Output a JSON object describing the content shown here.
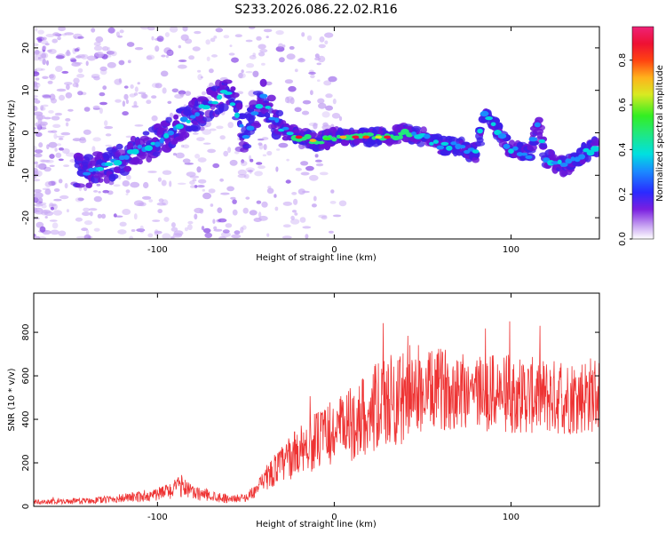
{
  "title": "S233.2026.086.22.02.R16",
  "chart_data": [
    {
      "type": "heatmap",
      "name": "spectrogram",
      "xlabel": "Height of straight line (km)",
      "ylabel": "Frequency (Hz)",
      "xlim": [
        -170,
        150
      ],
      "ylim": [
        -25,
        25
      ],
      "xticks": [
        -100,
        0,
        100
      ],
      "yticks": [
        -20,
        -10,
        0,
        10,
        20
      ],
      "trace": [
        [
          -140,
          -9
        ],
        [
          -130,
          -8
        ],
        [
          -120,
          -6
        ],
        [
          -110,
          -4
        ],
        [
          -100,
          -2
        ],
        [
          -90,
          1
        ],
        [
          -80,
          4
        ],
        [
          -70,
          7
        ],
        [
          -60,
          10
        ],
        [
          -50,
          -1
        ],
        [
          -40,
          9
        ],
        [
          -35,
          4
        ],
        [
          -30,
          1
        ],
        [
          -20,
          -1
        ],
        [
          -10,
          -2
        ],
        [
          0,
          -1
        ],
        [
          10,
          -1
        ],
        [
          20,
          -1
        ],
        [
          30,
          -1
        ],
        [
          40,
          0
        ],
        [
          50,
          -1
        ],
        [
          60,
          -3
        ],
        [
          70,
          -3
        ],
        [
          80,
          -5
        ],
        [
          85,
          5
        ],
        [
          90,
          2
        ],
        [
          100,
          -4
        ],
        [
          110,
          -5
        ],
        [
          115,
          2
        ],
        [
          120,
          -6
        ],
        [
          130,
          -8
        ],
        [
          140,
          -5
        ],
        [
          150,
          -3
        ]
      ],
      "colorbar": {
        "label": "Normalized spectral amplitude",
        "ticks": [
          0.0,
          0.2,
          0.4,
          0.6,
          0.8
        ],
        "tick_labels": [
          "0.0",
          "0.2",
          "0.4",
          "0.6",
          "0.8"
        ],
        "range": [
          0,
          0.95
        ]
      }
    },
    {
      "type": "line",
      "name": "snr",
      "xlabel": "Height of straight line (km)",
      "ylabel": "SNR (10 * v/v)",
      "xlim": [
        -170,
        150
      ],
      "ylim": [
        0,
        980
      ],
      "xticks": [
        -100,
        0,
        100
      ],
      "yticks": [
        0,
        200,
        400,
        600,
        800
      ],
      "color": "#ee3333",
      "envelope": [
        [
          -170,
          20
        ],
        [
          -150,
          22
        ],
        [
          -130,
          30
        ],
        [
          -110,
          45
        ],
        [
          -100,
          55
        ],
        [
          -90,
          80
        ],
        [
          -85,
          100
        ],
        [
          -80,
          60
        ],
        [
          -70,
          50
        ],
        [
          -60,
          35
        ],
        [
          -50,
          40
        ],
        [
          -45,
          70
        ],
        [
          -40,
          110
        ],
        [
          -35,
          160
        ],
        [
          -30,
          190
        ],
        [
          -25,
          220
        ],
        [
          -20,
          260
        ],
        [
          -15,
          280
        ],
        [
          -10,
          300
        ],
        [
          -5,
          320
        ],
        [
          0,
          340
        ],
        [
          5,
          360
        ],
        [
          10,
          380
        ],
        [
          15,
          410
        ],
        [
          20,
          440
        ],
        [
          30,
          480
        ],
        [
          40,
          500
        ],
        [
          50,
          520
        ],
        [
          60,
          540
        ],
        [
          70,
          545
        ],
        [
          80,
          530
        ],
        [
          90,
          520
        ],
        [
          100,
          515
        ],
        [
          110,
          510
        ],
        [
          120,
          505
        ],
        [
          130,
          500
        ],
        [
          140,
          510
        ],
        [
          150,
          520
        ]
      ]
    }
  ]
}
